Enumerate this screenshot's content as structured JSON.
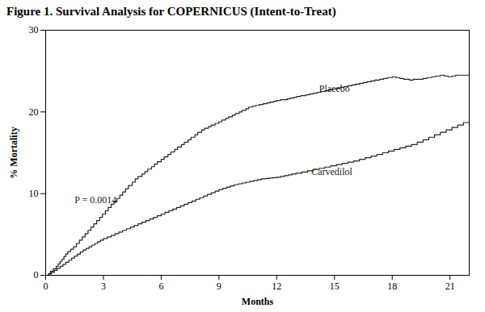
{
  "chart_data": {
    "type": "line",
    "title": "Figure 1. Survival Analysis for COPERNICUS (Intent-to-Treat)",
    "x_label": "Months",
    "y_label": "% Mortality",
    "xlim": [
      0,
      22.0
    ],
    "ylim": [
      0,
      30
    ],
    "xticks": [
      0,
      3,
      6,
      9,
      12,
      15,
      18,
      21
    ],
    "yticks": [
      0,
      10,
      20,
      30
    ],
    "line_style": "steps-post",
    "grid": false,
    "annotations": [
      {
        "text": "P = 0.0014",
        "x": 1.5,
        "y": 8.8
      }
    ],
    "series": [
      {
        "name": "Placebo",
        "color": "#222222",
        "label_at": [
          14.2,
          22.5
        ],
        "x": [
          0,
          0.15,
          0.25,
          0.4,
          0.55,
          0.65,
          0.75,
          0.85,
          0.95,
          1.05,
          1.15,
          1.3,
          1.45,
          1.6,
          1.75,
          1.9,
          2.05,
          2.2,
          2.35,
          2.5,
          2.65,
          2.8,
          2.95,
          3.1,
          3.25,
          3.4,
          3.55,
          3.7,
          3.85,
          4.0,
          4.15,
          4.3,
          4.5,
          4.65,
          4.8,
          5.0,
          5.15,
          5.3,
          5.5,
          5.65,
          5.8,
          6.0,
          6.15,
          6.35,
          6.5,
          6.7,
          6.85,
          7.05,
          7.2,
          7.4,
          7.55,
          7.75,
          7.9,
          8.1,
          8.25,
          8.45,
          8.6,
          8.8,
          9.0,
          9.15,
          9.35,
          9.5,
          9.7,
          9.85,
          10.05,
          10.2,
          10.4,
          10.55,
          10.75,
          10.9,
          11.1,
          11.3,
          11.5,
          11.65,
          11.85,
          12.0,
          12.2,
          12.35,
          12.55,
          12.7,
          12.9,
          13.05,
          13.25,
          13.5,
          13.7,
          13.9,
          14.1,
          14.3,
          14.5,
          14.7,
          14.9,
          15.1,
          15.3,
          15.5,
          15.7,
          15.9,
          16.1,
          16.3,
          16.5,
          16.7,
          16.9,
          17.1,
          17.35,
          17.55,
          17.75,
          18.0,
          18.2,
          18.4,
          18.6,
          18.9,
          19.1,
          19.35,
          19.6,
          19.8,
          20.05,
          20.25,
          20.5,
          20.7,
          20.9,
          21.1,
          21.3,
          21.5,
          21.7,
          22.0
        ],
        "values": [
          0,
          0.2,
          0.5,
          0.8,
          1.1,
          1.4,
          1.7,
          2.0,
          2.3,
          2.6,
          2.9,
          3.2,
          3.5,
          3.9,
          4.3,
          4.7,
          5.1,
          5.5,
          5.9,
          6.3,
          6.7,
          7.1,
          7.5,
          7.9,
          8.3,
          8.7,
          9.0,
          9.4,
          9.8,
          10.2,
          10.6,
          11.0,
          11.4,
          11.8,
          12.1,
          12.4,
          12.7,
          13.0,
          13.3,
          13.6,
          13.9,
          14.2,
          14.5,
          14.8,
          15.1,
          15.4,
          15.7,
          16.0,
          16.3,
          16.6,
          16.9,
          17.2,
          17.5,
          17.8,
          18.0,
          18.2,
          18.4,
          18.6,
          18.8,
          19.0,
          19.2,
          19.4,
          19.6,
          19.8,
          20.0,
          20.2,
          20.4,
          20.6,
          20.7,
          20.8,
          20.9,
          21.0,
          21.1,
          21.2,
          21.3,
          21.4,
          21.5,
          21.5,
          21.6,
          21.7,
          21.8,
          21.9,
          22.0,
          22.1,
          22.2,
          22.3,
          22.4,
          22.5,
          22.6,
          22.7,
          22.8,
          22.9,
          23.0,
          23.1,
          23.2,
          23.3,
          23.4,
          23.5,
          23.6,
          23.7,
          23.8,
          23.9,
          24.0,
          24.1,
          24.2,
          24.3,
          24.2,
          24.1,
          24.0,
          23.9,
          24.0,
          24.0,
          24.1,
          24.2,
          24.3,
          24.4,
          24.5,
          24.4,
          24.3,
          24.4,
          24.5,
          24.5,
          24.5,
          24.5
        ]
      },
      {
        "name": "Carvedilol",
        "color": "#222222",
        "label_at": [
          13.8,
          12.3
        ],
        "x": [
          0,
          0.15,
          0.3,
          0.45,
          0.6,
          0.75,
          0.9,
          1.05,
          1.2,
          1.35,
          1.5,
          1.65,
          1.8,
          1.95,
          2.1,
          2.25,
          2.4,
          2.55,
          2.7,
          2.85,
          3.0,
          3.2,
          3.4,
          3.6,
          3.8,
          4.0,
          4.2,
          4.4,
          4.6,
          4.8,
          5.0,
          5.2,
          5.4,
          5.6,
          5.8,
          6.0,
          6.2,
          6.4,
          6.6,
          6.8,
          7.0,
          7.2,
          7.4,
          7.6,
          7.8,
          8.0,
          8.2,
          8.4,
          8.6,
          8.8,
          9.0,
          9.2,
          9.4,
          9.6,
          9.8,
          10.0,
          10.2,
          10.4,
          10.6,
          10.8,
          11.0,
          11.2,
          11.4,
          11.6,
          11.8,
          12.0,
          12.2,
          12.4,
          12.6,
          12.8,
          13.0,
          13.3,
          13.6,
          13.9,
          14.2,
          14.5,
          14.8,
          15.1,
          15.4,
          15.7,
          16.0,
          16.3,
          16.6,
          16.9,
          17.2,
          17.5,
          17.8,
          18.1,
          18.4,
          18.7,
          19.0,
          19.3,
          19.6,
          19.9,
          20.2,
          20.5,
          20.8,
          21.1,
          21.4,
          21.7,
          22.0
        ],
        "values": [
          0,
          0.15,
          0.35,
          0.6,
          0.85,
          1.1,
          1.35,
          1.6,
          1.85,
          2.1,
          2.35,
          2.6,
          2.85,
          3.1,
          3.3,
          3.5,
          3.7,
          3.9,
          4.1,
          4.3,
          4.5,
          4.7,
          4.9,
          5.1,
          5.3,
          5.5,
          5.7,
          5.9,
          6.1,
          6.3,
          6.5,
          6.7,
          6.9,
          7.1,
          7.3,
          7.5,
          7.7,
          7.9,
          8.1,
          8.3,
          8.5,
          8.7,
          8.9,
          9.1,
          9.3,
          9.5,
          9.7,
          9.9,
          10.1,
          10.3,
          10.5,
          10.65,
          10.8,
          10.95,
          11.1,
          11.2,
          11.3,
          11.4,
          11.5,
          11.6,
          11.7,
          11.8,
          11.85,
          11.9,
          11.95,
          12.0,
          12.1,
          12.2,
          12.3,
          12.4,
          12.5,
          12.65,
          12.8,
          12.95,
          13.1,
          13.25,
          13.4,
          13.55,
          13.7,
          13.85,
          14.0,
          14.2,
          14.4,
          14.6,
          14.8,
          15.0,
          15.2,
          15.4,
          15.6,
          15.8,
          16.0,
          16.3,
          16.6,
          16.9,
          17.2,
          17.5,
          17.8,
          18.1,
          18.4,
          18.7,
          18.9
        ]
      }
    ]
  }
}
